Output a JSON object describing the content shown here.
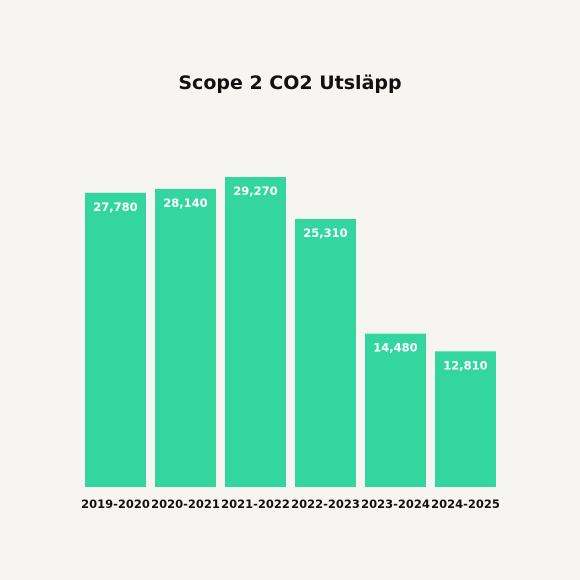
{
  "chart_data": {
    "type": "bar",
    "title": "Scope 2 CO2 Utsläpp",
    "xlabel": "",
    "ylabel": "",
    "categories": [
      "2019-2020",
      "2020-2021",
      "2021-2022",
      "2022-2023",
      "2023-2024",
      "2024-2025"
    ],
    "values": [
      27780,
      28140,
      29270,
      25310,
      14480,
      12810
    ],
    "value_labels": [
      "27,780",
      "28,140",
      "29,270",
      "25,310",
      "14,480",
      "12,810"
    ],
    "ylim": [
      0,
      29270
    ],
    "grid": false,
    "legend": "none",
    "bar_color": "#33d69f",
    "value_label_color": "#ffffff",
    "tick_label_color": "#111111",
    "background": "#f7f5f1"
  }
}
